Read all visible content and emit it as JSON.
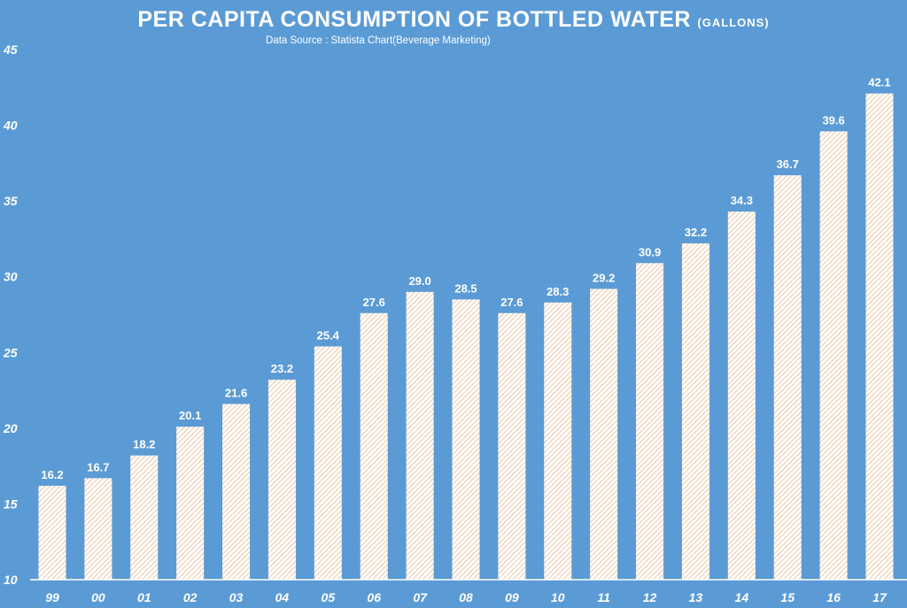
{
  "chart_data": {
    "type": "bar",
    "title": "PER CAPITA CONSUMPTION OF BOTTLED WATER",
    "title_unit": "(GALLONS)",
    "subtitle": "Data Source :  Statista  Chart(Beverage Marketing)",
    "xlabel": "",
    "ylabel": "",
    "categories": [
      "99",
      "00",
      "01",
      "02",
      "03",
      "04",
      "05",
      "06",
      "07",
      "08",
      "09",
      "10",
      "11",
      "12",
      "13",
      "14",
      "15",
      "16",
      "17"
    ],
    "values": [
      16.2,
      16.7,
      18.2,
      20.1,
      21.6,
      23.2,
      25.4,
      27.6,
      29.0,
      28.5,
      27.6,
      28.3,
      29.2,
      30.9,
      32.2,
      34.3,
      36.7,
      39.6,
      42.1
    ],
    "data_labels": [
      "16.2",
      "16.7",
      "18.2",
      "20.1",
      "21.6",
      "23.2",
      "25.4",
      "27.6",
      "29.0",
      "28.5",
      "27.6",
      "28.3",
      "29.2",
      "30.9",
      "32.2",
      "34.3",
      "36.7",
      "39.6",
      "42.1"
    ],
    "ylim": [
      10,
      45
    ],
    "yticks": [
      10,
      15,
      20,
      25,
      30,
      35,
      40,
      45
    ],
    "grid": false,
    "legend": "none",
    "colors": {
      "background": "#5b9bd5",
      "bar_fill": "#ffffff",
      "bar_hatch": "#e8b88f",
      "text": "#ffffff"
    }
  }
}
